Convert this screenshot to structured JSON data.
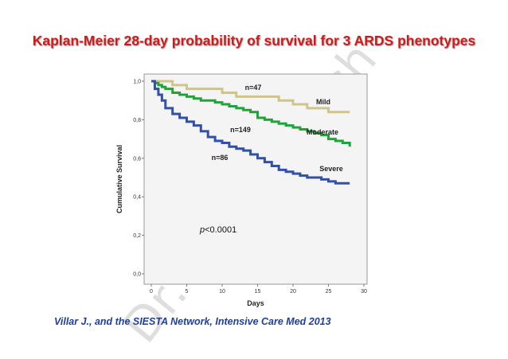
{
  "title": "Kaplan-Meier 28-day probability of survival for 3 ARDS phenotypes",
  "citation": "Villar J., and the SIESTA Network,  Intensive Care Med 2013",
  "watermark": "Dr. Lluís Blanch",
  "chart_data": {
    "type": "line",
    "step": true,
    "xlabel": "Days",
    "ylabel": "Cumulative Survival",
    "xlim": [
      0,
      30
    ],
    "ylim": [
      0,
      1.0
    ],
    "xticks": [
      "0",
      "5",
      "10",
      "15",
      "20",
      "25",
      "30"
    ],
    "yticks": [
      "0,0",
      "0,2",
      "0,4",
      "0,6",
      "0,8",
      "1,0"
    ],
    "xtick_values": [
      0,
      5,
      10,
      15,
      20,
      25,
      30
    ],
    "ytick_values": [
      0,
      0.2,
      0.4,
      0.6,
      0.8,
      1.0
    ],
    "grid": false,
    "plot_background": "#f4f4f4",
    "annotation": {
      "p_prefix": "p",
      "p_rest": "<0.0001"
    },
    "series": [
      {
        "name": "Mild",
        "n_label": "n=47",
        "color": "#cfc48a",
        "x": [
          0,
          1.5,
          3,
          5,
          8,
          10,
          12,
          17,
          18,
          20,
          22,
          25,
          28
        ],
        "y": [
          1.0,
          1.0,
          0.98,
          0.96,
          0.96,
          0.94,
          0.92,
          0.92,
          0.9,
          0.88,
          0.86,
          0.84,
          0.84
        ]
      },
      {
        "name": "Moderate",
        "n_label": "n=149",
        "color": "#22a33a",
        "x": [
          0,
          0.5,
          1,
          1.5,
          2,
          3,
          4,
          5,
          6,
          7,
          8,
          9,
          10,
          11,
          12,
          13,
          14,
          15,
          16,
          17,
          18,
          19,
          20,
          21,
          22,
          23,
          24,
          25,
          26,
          27,
          28
        ],
        "y": [
          1.0,
          0.99,
          0.98,
          0.97,
          0.96,
          0.94,
          0.93,
          0.92,
          0.91,
          0.9,
          0.9,
          0.89,
          0.88,
          0.87,
          0.86,
          0.85,
          0.84,
          0.81,
          0.8,
          0.79,
          0.78,
          0.77,
          0.76,
          0.75,
          0.74,
          0.73,
          0.72,
          0.7,
          0.69,
          0.68,
          0.66
        ]
      },
      {
        "name": "Severe",
        "n_label": "n=86",
        "color": "#3350a8",
        "x": [
          0,
          0.5,
          1,
          1.5,
          2,
          3,
          4,
          5,
          6,
          7,
          8,
          9,
          10,
          11,
          12,
          13,
          14,
          15,
          16,
          17,
          18,
          19,
          20,
          21,
          22,
          23,
          24,
          25,
          26,
          27,
          28
        ],
        "y": [
          1.0,
          0.96,
          0.93,
          0.9,
          0.86,
          0.83,
          0.81,
          0.79,
          0.77,
          0.74,
          0.71,
          0.69,
          0.68,
          0.66,
          0.65,
          0.64,
          0.62,
          0.6,
          0.58,
          0.56,
          0.54,
          0.53,
          0.52,
          0.51,
          0.5,
          0.5,
          0.49,
          0.48,
          0.47,
          0.47,
          0.47
        ]
      }
    ]
  }
}
